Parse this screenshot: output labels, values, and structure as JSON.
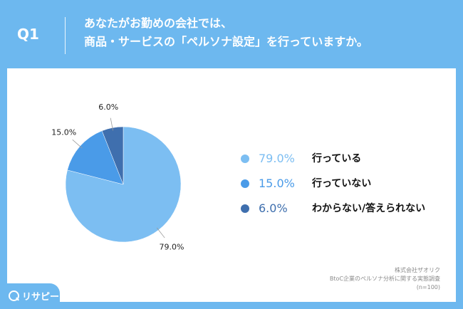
{
  "header": {
    "question_number": "Q1",
    "question_line1": "あなたがお勤めの会社では、",
    "question_line2": "商品・サービスの「ペルソナ設定」を行っていますか。"
  },
  "chart_data": {
    "type": "pie",
    "slices": [
      {
        "value": 79.0,
        "label": "79.0%",
        "name": "行っている",
        "color": "#7cbef2"
      },
      {
        "value": 15.0,
        "label": "15.0%",
        "name": "行っていない",
        "color": "#4a9be8"
      },
      {
        "value": 6.0,
        "label": "6.0%",
        "name": "わからない/答えられない",
        "color": "#3f6fae"
      }
    ],
    "legend_position": "right"
  },
  "source": {
    "line1": "株式会社ザオリク",
    "line2": "BtoC企業のペルソナ分析に関する実態調査",
    "line3": "(n=100)"
  },
  "logo": {
    "text": "リサピー",
    "icon": "magnifier-icon"
  },
  "colors": {
    "background": "#6db8ef",
    "card": "#ffffff"
  }
}
